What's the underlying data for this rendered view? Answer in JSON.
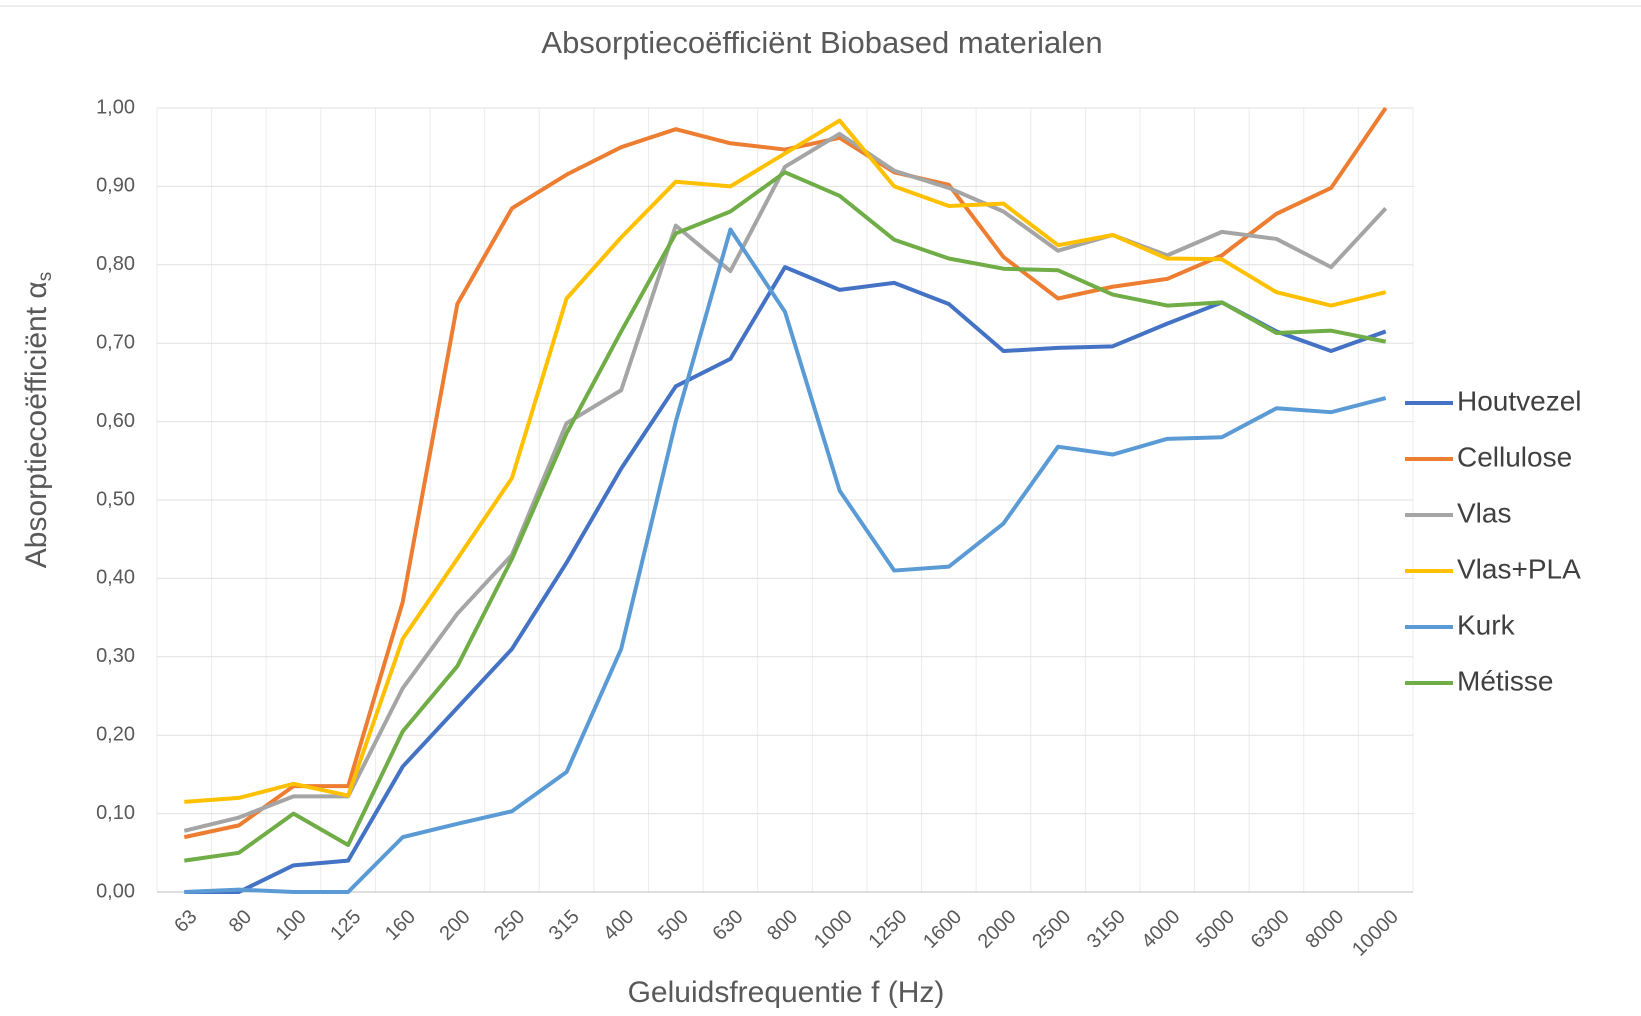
{
  "chart_data": {
    "type": "line",
    "title": "Absorptiecoëfficiënt Biobased materialen",
    "x_label": "Geluidsfrequentie f  (Hz)",
    "y_label": "Absorptiecoëfficiënt α",
    "y_label_subscript": "s",
    "categories": [
      "63",
      "80",
      "100",
      "125",
      "160",
      "200",
      "250",
      "315",
      "400",
      "500",
      "630",
      "800",
      "1000",
      "1250",
      "1600",
      "2000",
      "2500",
      "3150",
      "4000",
      "5000",
      "6300",
      "8000",
      "10000"
    ],
    "ylim": [
      0,
      1
    ],
    "yticks": [
      {
        "value": 0,
        "label": "0,00"
      },
      {
        "value": 0.1,
        "label": "0,10"
      },
      {
        "value": 0.2,
        "label": "0,20"
      },
      {
        "value": 0.3,
        "label": "0,30"
      },
      {
        "value": 0.4,
        "label": "0,40"
      },
      {
        "value": 0.5,
        "label": "0,50"
      },
      {
        "value": 0.6,
        "label": "0,60"
      },
      {
        "value": 0.7,
        "label": "0,70"
      },
      {
        "value": 0.8,
        "label": "0,80"
      },
      {
        "value": 0.9,
        "label": "0,90"
      },
      {
        "value": 1,
        "label": "1,00"
      }
    ],
    "grid": true,
    "legend": "right",
    "series": [
      {
        "name": "Houtvezel",
        "color": "#4472c4",
        "values": [
          0.0,
          0.0,
          0.034,
          0.04,
          0.16,
          0.235,
          0.31,
          0.42,
          0.54,
          0.645,
          0.68,
          0.797,
          0.768,
          0.777,
          0.75,
          0.69,
          0.694,
          0.696,
          0.725,
          0.752,
          0.715,
          0.69,
          0.715
        ]
      },
      {
        "name": "Cellulose",
        "color": "#ed7d31",
        "values": [
          0.07,
          0.085,
          0.135,
          0.135,
          0.37,
          0.75,
          0.872,
          0.915,
          0.95,
          0.973,
          0.955,
          0.947,
          0.962,
          0.918,
          0.902,
          0.81,
          0.757,
          0.772,
          0.782,
          0.812,
          0.865,
          0.898,
          1.0
        ]
      },
      {
        "name": "Vlas",
        "color": "#a5a5a5",
        "values": [
          0.078,
          0.095,
          0.122,
          0.122,
          0.26,
          0.355,
          0.43,
          0.598,
          0.64,
          0.85,
          0.792,
          0.925,
          0.967,
          0.92,
          0.898,
          0.868,
          0.818,
          0.838,
          0.812,
          0.842,
          0.833,
          0.797,
          0.872
        ]
      },
      {
        "name": "Vlas+PLA",
        "color": "#ffc000",
        "values": [
          0.115,
          0.12,
          0.138,
          0.123,
          0.323,
          0.425,
          0.528,
          0.757,
          0.835,
          0.906,
          0.9,
          0.942,
          0.984,
          0.9,
          0.875,
          0.878,
          0.825,
          0.838,
          0.808,
          0.807,
          0.765,
          0.748,
          0.765
        ]
      },
      {
        "name": "Kurk",
        "color": "#5b9bd5",
        "values": [
          0.0,
          0.003,
          0.0,
          0.0,
          0.07,
          0.087,
          0.103,
          0.153,
          0.31,
          0.6,
          0.845,
          0.74,
          0.512,
          0.41,
          0.415,
          0.47,
          0.568,
          0.558,
          0.578,
          0.58,
          0.617,
          0.612,
          0.63
        ]
      },
      {
        "name": "Métisse",
        "color": "#70ad47",
        "values": [
          0.04,
          0.05,
          0.1,
          0.06,
          0.205,
          0.288,
          0.425,
          0.585,
          0.715,
          0.84,
          0.868,
          0.918,
          0.888,
          0.832,
          0.808,
          0.795,
          0.793,
          0.762,
          0.748,
          0.752,
          0.713,
          0.716,
          0.702
        ]
      }
    ]
  }
}
